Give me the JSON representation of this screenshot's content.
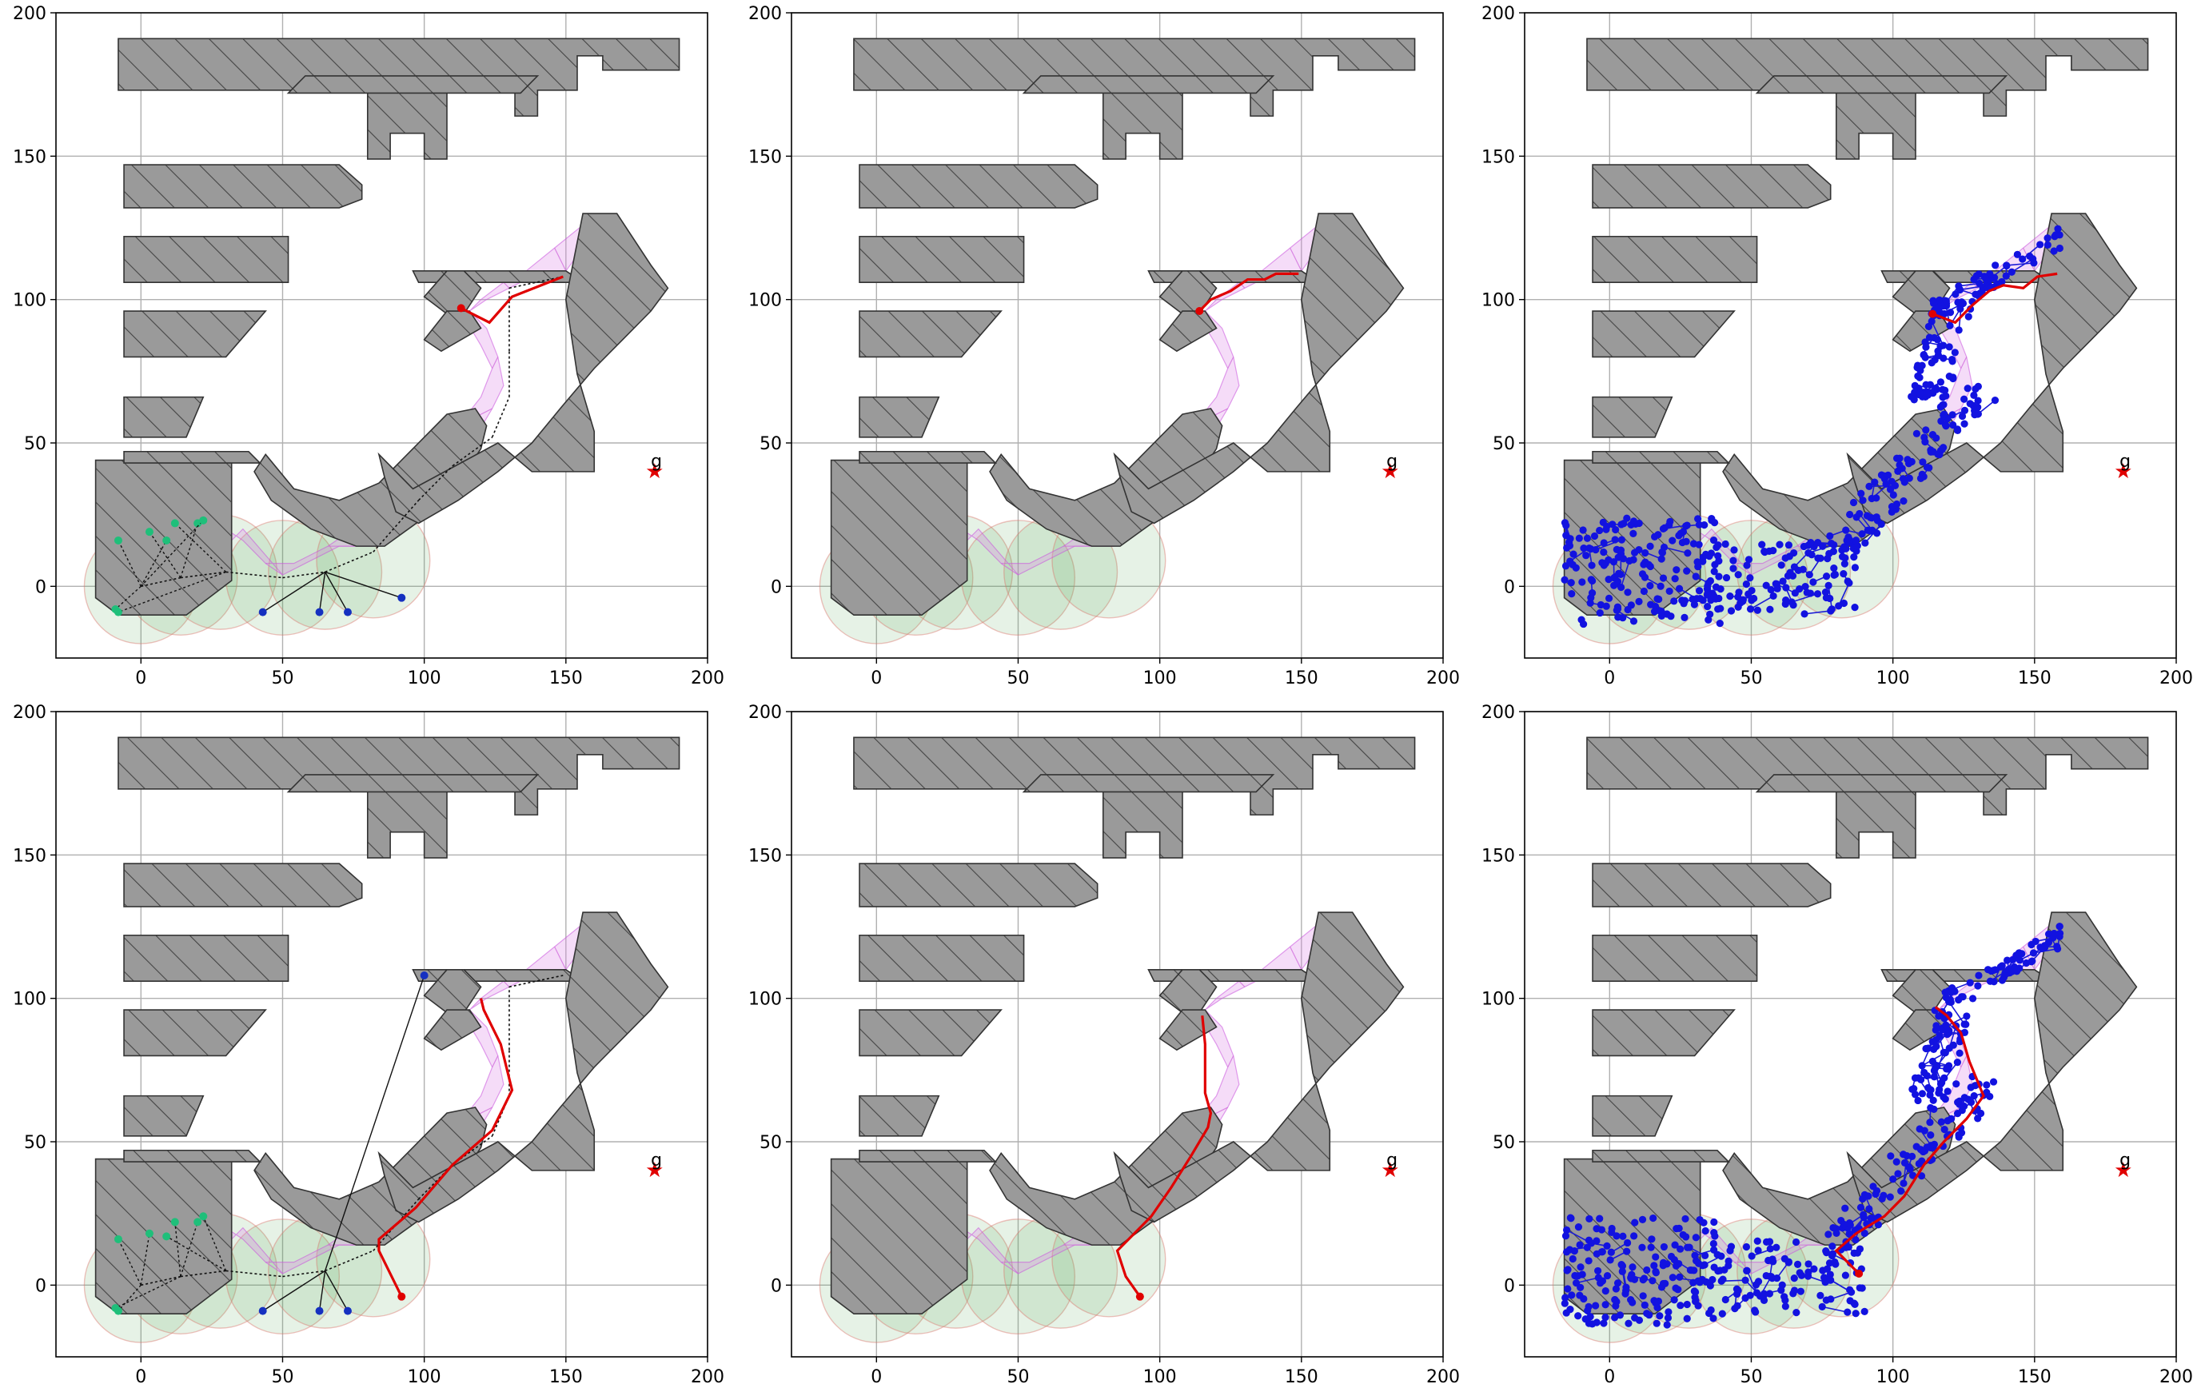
{
  "chart_data": [
    {
      "type": "scatter",
      "panel": "top-left",
      "xlim": [
        -30,
        200
      ],
      "ylim": [
        -25,
        200
      ],
      "xticks": [
        "0",
        "50",
        "100",
        "150",
        "200"
      ],
      "yticks": [
        "0",
        "50",
        "100",
        "150",
        "200"
      ],
      "grid": true,
      "goal": {
        "label": "g",
        "x": 180,
        "y": 40
      },
      "style": "tree",
      "nodes_green": [
        [
          -8,
          16
        ],
        [
          -9,
          -8
        ],
        [
          3,
          19
        ],
        [
          12,
          22
        ],
        [
          20,
          22
        ],
        [
          9,
          16
        ],
        [
          22,
          23
        ],
        [
          -8,
          -9
        ]
      ],
      "nodes_blue": [
        [
          43,
          -9
        ],
        [
          63,
          -9
        ],
        [
          73,
          -9
        ],
        [
          92,
          -4
        ]
      ],
      "path_red": [
        [
          113,
          97
        ],
        [
          115,
          96
        ],
        [
          123,
          92
        ],
        [
          131,
          101
        ],
        [
          149,
          108
        ]
      ]
    },
    {
      "type": "scatter",
      "panel": "top-middle",
      "xlim": [
        -30,
        200
      ],
      "ylim": [
        -25,
        200
      ],
      "xticks": [
        "0",
        "50",
        "100",
        "150",
        "200"
      ],
      "yticks": [
        "0",
        "50",
        "100",
        "150",
        "200"
      ],
      "grid": true,
      "goal": {
        "label": "g",
        "x": 180,
        "y": 40
      },
      "style": "plain",
      "path_red": [
        [
          114,
          96
        ],
        [
          118,
          100
        ],
        [
          125,
          103
        ],
        [
          131,
          107
        ],
        [
          137,
          107
        ],
        [
          141,
          109
        ],
        [
          149,
          109
        ]
      ]
    },
    {
      "type": "scatter",
      "panel": "top-right",
      "xlim": [
        -30,
        200
      ],
      "ylim": [
        -25,
        200
      ],
      "xticks": [
        "0",
        "50",
        "100",
        "150",
        "200"
      ],
      "yticks": [
        "0",
        "50",
        "100",
        "150",
        "200"
      ],
      "grid": true,
      "goal": {
        "label": "g",
        "x": 180,
        "y": 40
      },
      "style": "dense",
      "path_red": [
        [
          114,
          95
        ],
        [
          122,
          92
        ],
        [
          128,
          98
        ],
        [
          134,
          103
        ],
        [
          139,
          105
        ],
        [
          146,
          104
        ],
        [
          151,
          108
        ],
        [
          158,
          109
        ]
      ]
    },
    {
      "type": "scatter",
      "panel": "bottom-left",
      "xlim": [
        -30,
        200
      ],
      "ylim": [
        -25,
        200
      ],
      "xticks": [
        "0",
        "50",
        "100",
        "150",
        "200"
      ],
      "yticks": [
        "0",
        "50",
        "100",
        "150",
        "200"
      ],
      "grid": true,
      "goal": {
        "label": "g",
        "x": 180,
        "y": 40
      },
      "style": "tree",
      "nodes_green": [
        [
          -8,
          16
        ],
        [
          -9,
          -8
        ],
        [
          3,
          18
        ],
        [
          12,
          22
        ],
        [
          20,
          22
        ],
        [
          9,
          17
        ],
        [
          22,
          24
        ],
        [
          -8,
          -9
        ]
      ],
      "nodes_blue": [
        [
          43,
          -9
        ],
        [
          63,
          -9
        ],
        [
          73,
          -9
        ],
        [
          100,
          108
        ]
      ],
      "path_red": [
        [
          92,
          -4
        ],
        [
          84,
          12
        ],
        [
          84,
          16
        ],
        [
          97,
          27
        ],
        [
          110,
          42
        ],
        [
          124,
          54
        ],
        [
          131,
          68
        ],
        [
          127,
          84
        ],
        [
          121,
          96
        ],
        [
          120,
          100
        ]
      ]
    },
    {
      "type": "scatter",
      "panel": "bottom-middle",
      "xlim": [
        -30,
        200
      ],
      "ylim": [
        -25,
        200
      ],
      "xticks": [
        "0",
        "50",
        "100",
        "150",
        "200"
      ],
      "yticks": [
        "0",
        "50",
        "100",
        "150",
        "200"
      ],
      "grid": true,
      "goal": {
        "label": "g",
        "x": 180,
        "y": 40
      },
      "style": "plain",
      "path_red": [
        [
          93,
          -4
        ],
        [
          88,
          3
        ],
        [
          85,
          12
        ],
        [
          90,
          17
        ],
        [
          97,
          24
        ],
        [
          104,
          34
        ],
        [
          111,
          45
        ],
        [
          117,
          55
        ],
        [
          118,
          60
        ],
        [
          116,
          67
        ],
        [
          116,
          75
        ],
        [
          116,
          84
        ],
        [
          115,
          94
        ]
      ]
    },
    {
      "type": "scatter",
      "panel": "bottom-right",
      "xlim": [
        -30,
        200
      ],
      "ylim": [
        -25,
        200
      ],
      "xticks": [
        "0",
        "50",
        "100",
        "150",
        "200"
      ],
      "yticks": [
        "0",
        "50",
        "100",
        "150",
        "200"
      ],
      "grid": true,
      "goal": {
        "label": "g",
        "x": 180,
        "y": 40
      },
      "style": "dense",
      "path_red": [
        [
          88,
          4
        ],
        [
          80,
          12
        ],
        [
          87,
          18
        ],
        [
          97,
          24
        ],
        [
          104,
          31
        ],
        [
          111,
          42
        ],
        [
          118,
          50
        ],
        [
          126,
          58
        ],
        [
          132,
          66
        ],
        [
          127,
          78
        ],
        [
          124,
          88
        ],
        [
          119,
          94
        ],
        [
          115,
          97
        ]
      ]
    }
  ]
}
